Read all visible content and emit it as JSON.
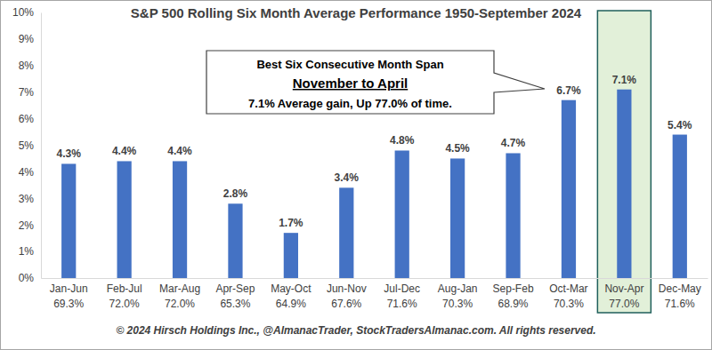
{
  "chart_data": {
    "type": "bar",
    "title": "S&P 500 Rolling Six Month Average Performance 1950-September 2024",
    "categories": [
      "Jan-Jun",
      "Feb-Jul",
      "Mar-Aug",
      "Apr-Sep",
      "May-Oct",
      "Jun-Nov",
      "Jul-Dec",
      "Aug-Jan",
      "Sep-Feb",
      "Oct-Mar",
      "Nov-Apr",
      "Dec-May"
    ],
    "percent_up": [
      "69.3%",
      "72.0%",
      "72.0%",
      "65.3%",
      "64.9%",
      "67.6%",
      "71.6%",
      "70.3%",
      "68.9%",
      "70.3%",
      "77.0%",
      "71.6%"
    ],
    "values": [
      4.3,
      4.4,
      4.4,
      2.8,
      1.7,
      3.4,
      4.8,
      4.5,
      4.7,
      6.7,
      7.1,
      5.4
    ],
    "value_labels": [
      "4.3%",
      "4.4%",
      "4.4%",
      "2.8%",
      "1.7%",
      "3.4%",
      "4.8%",
      "4.5%",
      "4.7%",
      "6.7%",
      "7.1%",
      "5.4%"
    ],
    "color": "#4472c4",
    "ylim": [
      0,
      10
    ],
    "yticks": [
      {
        "value": 0,
        "label": "0%"
      },
      {
        "value": 1,
        "label": "1%"
      },
      {
        "value": 2,
        "label": "2%"
      },
      {
        "value": 3,
        "label": "3%"
      },
      {
        "value": 4,
        "label": "4%"
      },
      {
        "value": 5,
        "label": "5%"
      },
      {
        "value": 6,
        "label": "6%"
      },
      {
        "value": 7,
        "label": "7%"
      },
      {
        "value": 8,
        "label": "8%"
      },
      {
        "value": 9,
        "label": "9%"
      },
      {
        "value": 10,
        "label": "10%"
      }
    ],
    "grid": false,
    "data_labels": true,
    "annotation": {
      "text": [
        "Best Six Consecutive Month Span",
        "November to April",
        "7.1% Average gain, Up 77.0% of time."
      ],
      "category": "Nov-Apr"
    },
    "footer": "© 2024 Hirsch Holdings Inc., @AlmanacTrader, StockTradersAlmanac.com. All rights reserved."
  }
}
